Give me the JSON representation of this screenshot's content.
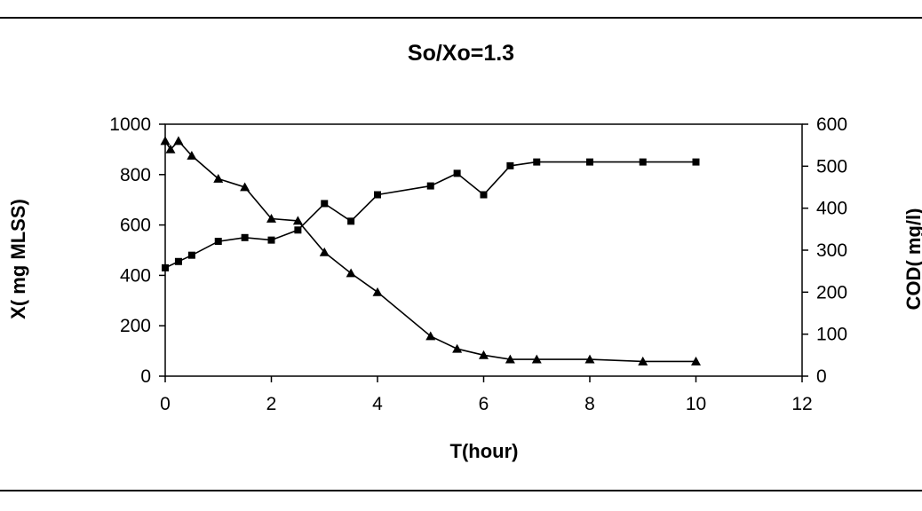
{
  "chart_data": {
    "type": "line",
    "title": "So/Xo=1.3",
    "xlabel": "T(hour)",
    "ylabel": "X( mg MLSS)",
    "y2label": "COD( mg/l)",
    "xlim": [
      0,
      12
    ],
    "ylim": [
      0,
      1000
    ],
    "y2lim": [
      0,
      600
    ],
    "x_ticks": [
      "0",
      "2",
      "4",
      "6",
      "8",
      "10",
      "12"
    ],
    "y_ticks": [
      "0",
      "200",
      "400",
      "600",
      "800",
      "1000"
    ],
    "y2_ticks": [
      "0",
      "100",
      "200",
      "300",
      "400",
      "500",
      "600"
    ],
    "grid": false,
    "series": [
      {
        "marker": "square",
        "axis": "left",
        "x": [
          0,
          0.25,
          0.5,
          1,
          1.5,
          2,
          2.5,
          3,
          3.5,
          4,
          5,
          5.5,
          6,
          6.5,
          7,
          8,
          9,
          10
        ],
        "values": [
          430,
          455,
          480,
          535,
          550,
          540,
          580,
          685,
          615,
          720,
          755,
          805,
          720,
          835,
          850,
          850,
          850,
          850
        ]
      },
      {
        "marker": "triangle",
        "axis": "right",
        "x": [
          0,
          0.1,
          0.25,
          0.5,
          1,
          1.5,
          2,
          2.5,
          3,
          3.5,
          4,
          5,
          5.5,
          6,
          6.5,
          7,
          8,
          9,
          10
        ],
        "values": [
          560,
          540,
          560,
          525,
          470,
          450,
          375,
          370,
          295,
          245,
          200,
          95,
          65,
          50,
          40,
          40,
          40,
          35,
          35
        ]
      }
    ]
  }
}
